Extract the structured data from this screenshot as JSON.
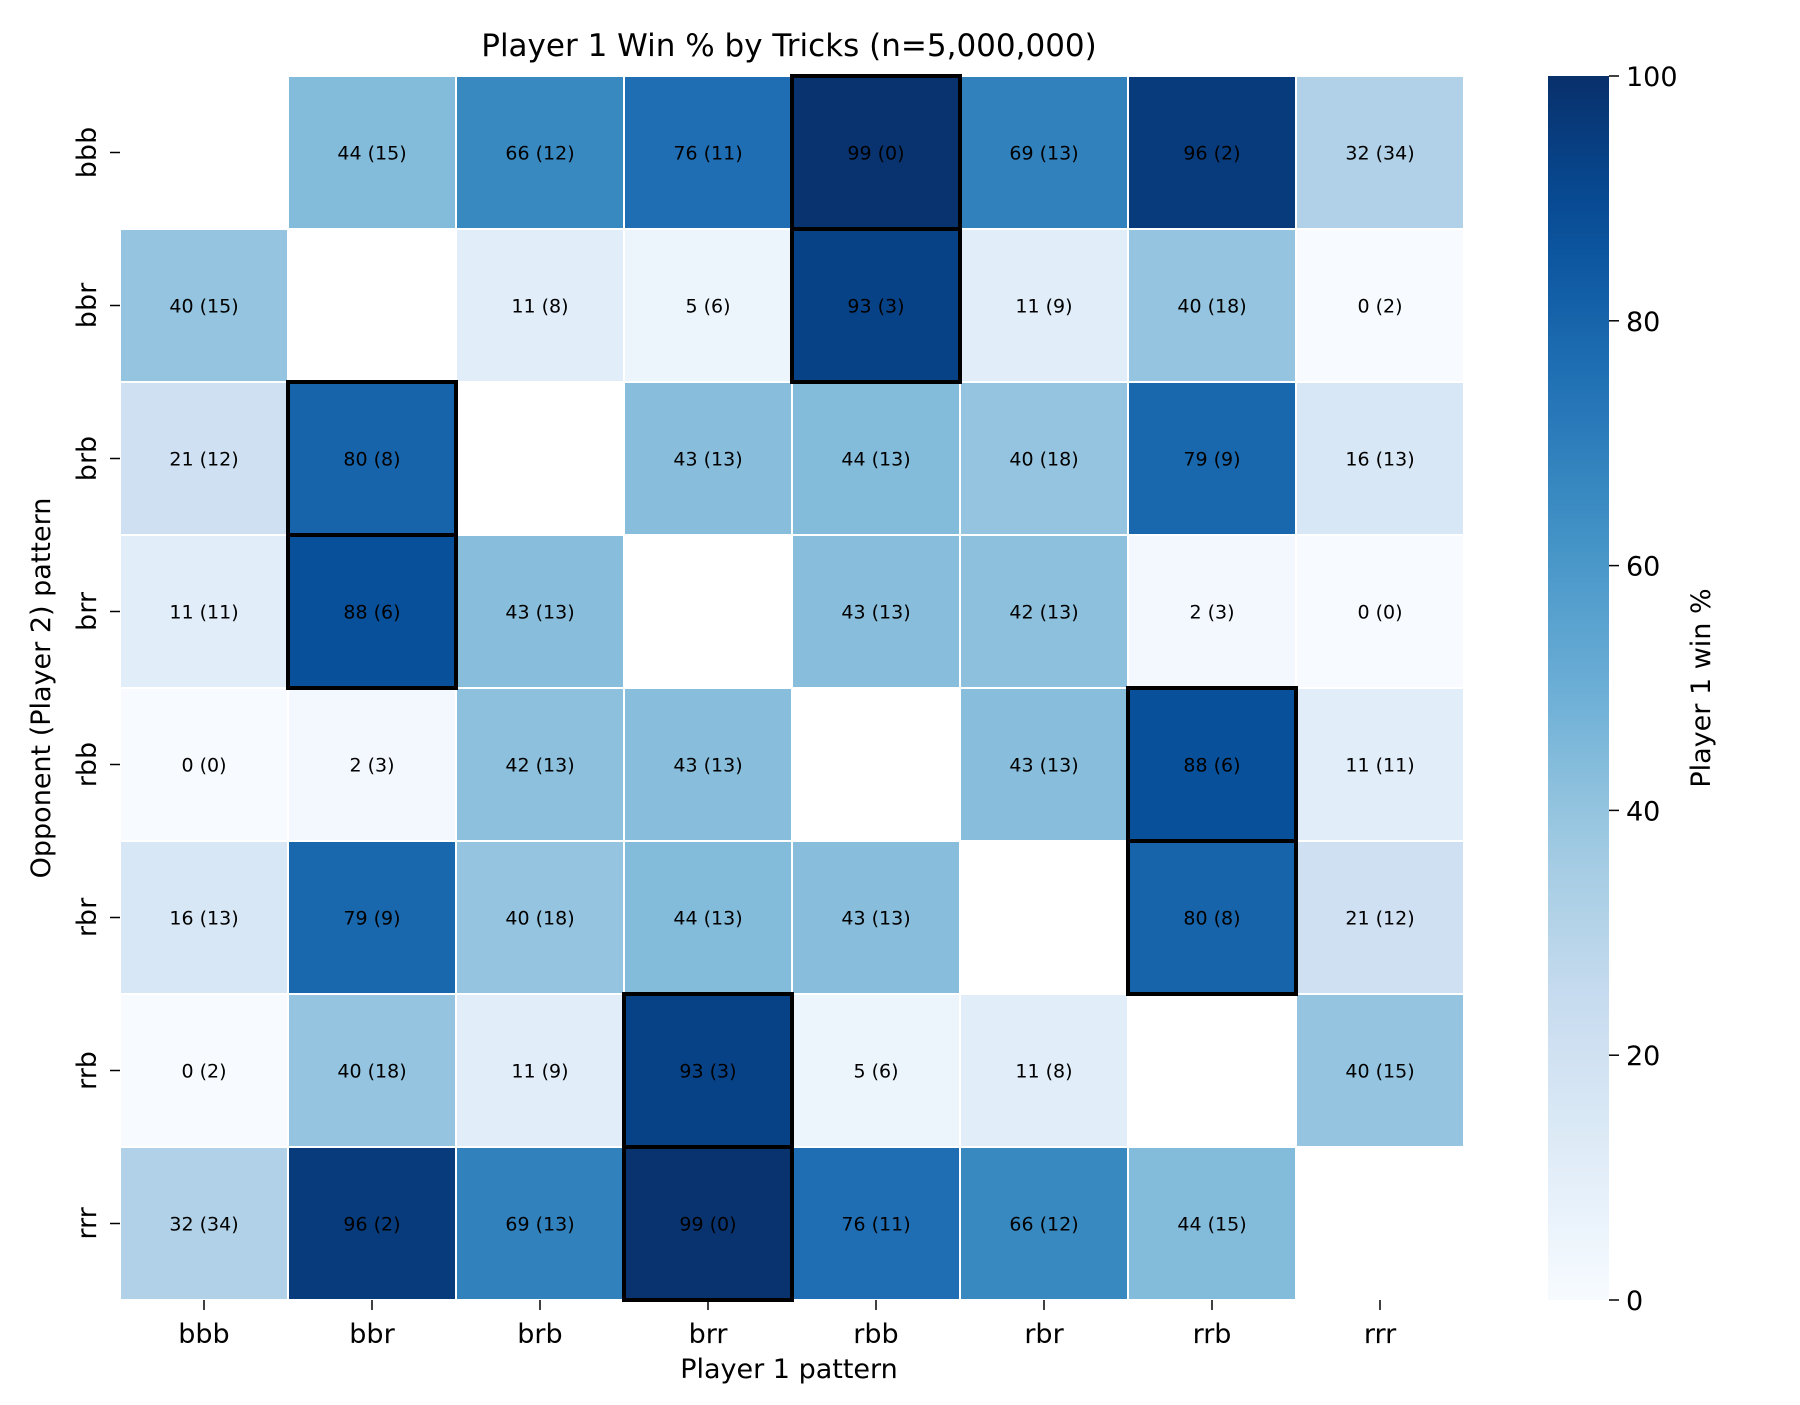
{
  "chart_data": {
    "type": "heatmap",
    "title": "Player 1 Win % by Tricks (n=5,000,000)",
    "xlabel": "Player 1 pattern",
    "ylabel": "Opponent (Player 2) pattern",
    "x_categories": [
      "bbb",
      "bbr",
      "brb",
      "brr",
      "rbb",
      "rbr",
      "rrb",
      "rrr"
    ],
    "y_categories": [
      "bbb",
      "bbr",
      "brb",
      "brr",
      "rbb",
      "rbr",
      "rrb",
      "rrr"
    ],
    "values": [
      [
        null,
        44,
        66,
        76,
        99,
        69,
        96,
        32
      ],
      [
        40,
        null,
        11,
        5,
        93,
        11,
        40,
        0
      ],
      [
        21,
        80,
        null,
        43,
        44,
        40,
        79,
        16
      ],
      [
        11,
        88,
        43,
        null,
        43,
        42,
        2,
        0
      ],
      [
        0,
        2,
        42,
        43,
        null,
        43,
        88,
        11
      ],
      [
        16,
        79,
        40,
        44,
        43,
        null,
        80,
        21
      ],
      [
        0,
        40,
        11,
        93,
        5,
        11,
        null,
        40
      ],
      [
        32,
        96,
        69,
        99,
        76,
        66,
        44,
        null
      ]
    ],
    "annotations": [
      [
        "",
        "44 (15)",
        "66 (12)",
        "76 (11)",
        "99 (0)",
        "69 (13)",
        "96 (2)",
        "32 (34)"
      ],
      [
        "40 (15)",
        "",
        "11 (8)",
        "5 (6)",
        "93 (3)",
        "11 (9)",
        "40 (18)",
        "0 (2)"
      ],
      [
        "21 (12)",
        "80 (8)",
        "",
        "43 (13)",
        "44 (13)",
        "40 (18)",
        "79 (9)",
        "16 (13)"
      ],
      [
        "11 (11)",
        "88 (6)",
        "43 (13)",
        "",
        "43 (13)",
        "42 (13)",
        "2 (3)",
        "0 (0)"
      ],
      [
        "0 (0)",
        "2 (3)",
        "42 (13)",
        "43 (13)",
        "",
        "43 (13)",
        "88 (6)",
        "11 (11)"
      ],
      [
        "16 (13)",
        "79 (9)",
        "40 (18)",
        "44 (13)",
        "43 (13)",
        "",
        "80 (8)",
        "21 (12)"
      ],
      [
        "0 (2)",
        "40 (18)",
        "11 (9)",
        "93 (3)",
        "5 (6)",
        "11 (8)",
        "",
        "40 (15)"
      ],
      [
        "32 (34)",
        "96 (2)",
        "69 (13)",
        "99 (0)",
        "76 (11)",
        "66 (12)",
        "44 (15)",
        ""
      ]
    ],
    "highlighted_cells": [
      {
        "row": "bbb",
        "col": "rbb"
      },
      {
        "row": "bbr",
        "col": "rbb"
      },
      {
        "row": "brb",
        "col": "bbr"
      },
      {
        "row": "brr",
        "col": "bbr"
      },
      {
        "row": "rbb",
        "col": "rrb"
      },
      {
        "row": "rbr",
        "col": "rrb"
      },
      {
        "row": "rrb",
        "col": "brr"
      },
      {
        "row": "rrr",
        "col": "brr"
      }
    ],
    "colormap": "Blues",
    "colorbar": {
      "label": "Player 1 win %",
      "range": [
        0,
        100
      ],
      "ticks": [
        0,
        20,
        40,
        60,
        80,
        100
      ]
    },
    "highlight_color": "#000000"
  }
}
